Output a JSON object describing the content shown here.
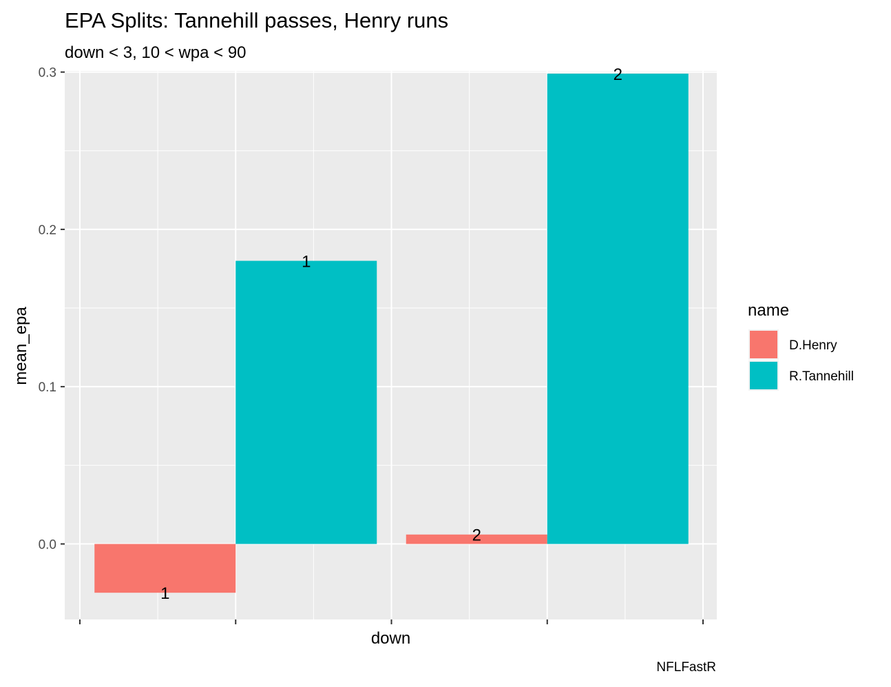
{
  "chart_data": {
    "type": "bar",
    "title": "EPA Splits: Tannehill passes, Henry runs",
    "subtitle": "down < 3, 10 < wpa < 90",
    "xlabel": "down",
    "ylabel": "mean_epa",
    "caption": "NFLFastR",
    "categories": [
      "1",
      "2"
    ],
    "ylim": [
      -0.048,
      0.3007
    ],
    "yticks": [
      0.0,
      0.1,
      0.2,
      0.3
    ],
    "ytick_labels": [
      "0.0",
      "0.1",
      "0.2",
      "0.3"
    ],
    "x_tick_count": 5,
    "legend": {
      "title": "name",
      "position": "right"
    },
    "series": [
      {
        "name": "D.Henry",
        "color": "#F8766D",
        "values": [
          -0.031,
          0.006
        ],
        "labels": [
          "1",
          "2"
        ]
      },
      {
        "name": "R.Tannehill",
        "color": "#00BFC4",
        "values": [
          0.18,
          0.299
        ],
        "labels": [
          "1",
          "2"
        ]
      }
    ],
    "grid": true,
    "panel_background": "#EBEBEB",
    "grid_color": "#FFFFFF"
  }
}
